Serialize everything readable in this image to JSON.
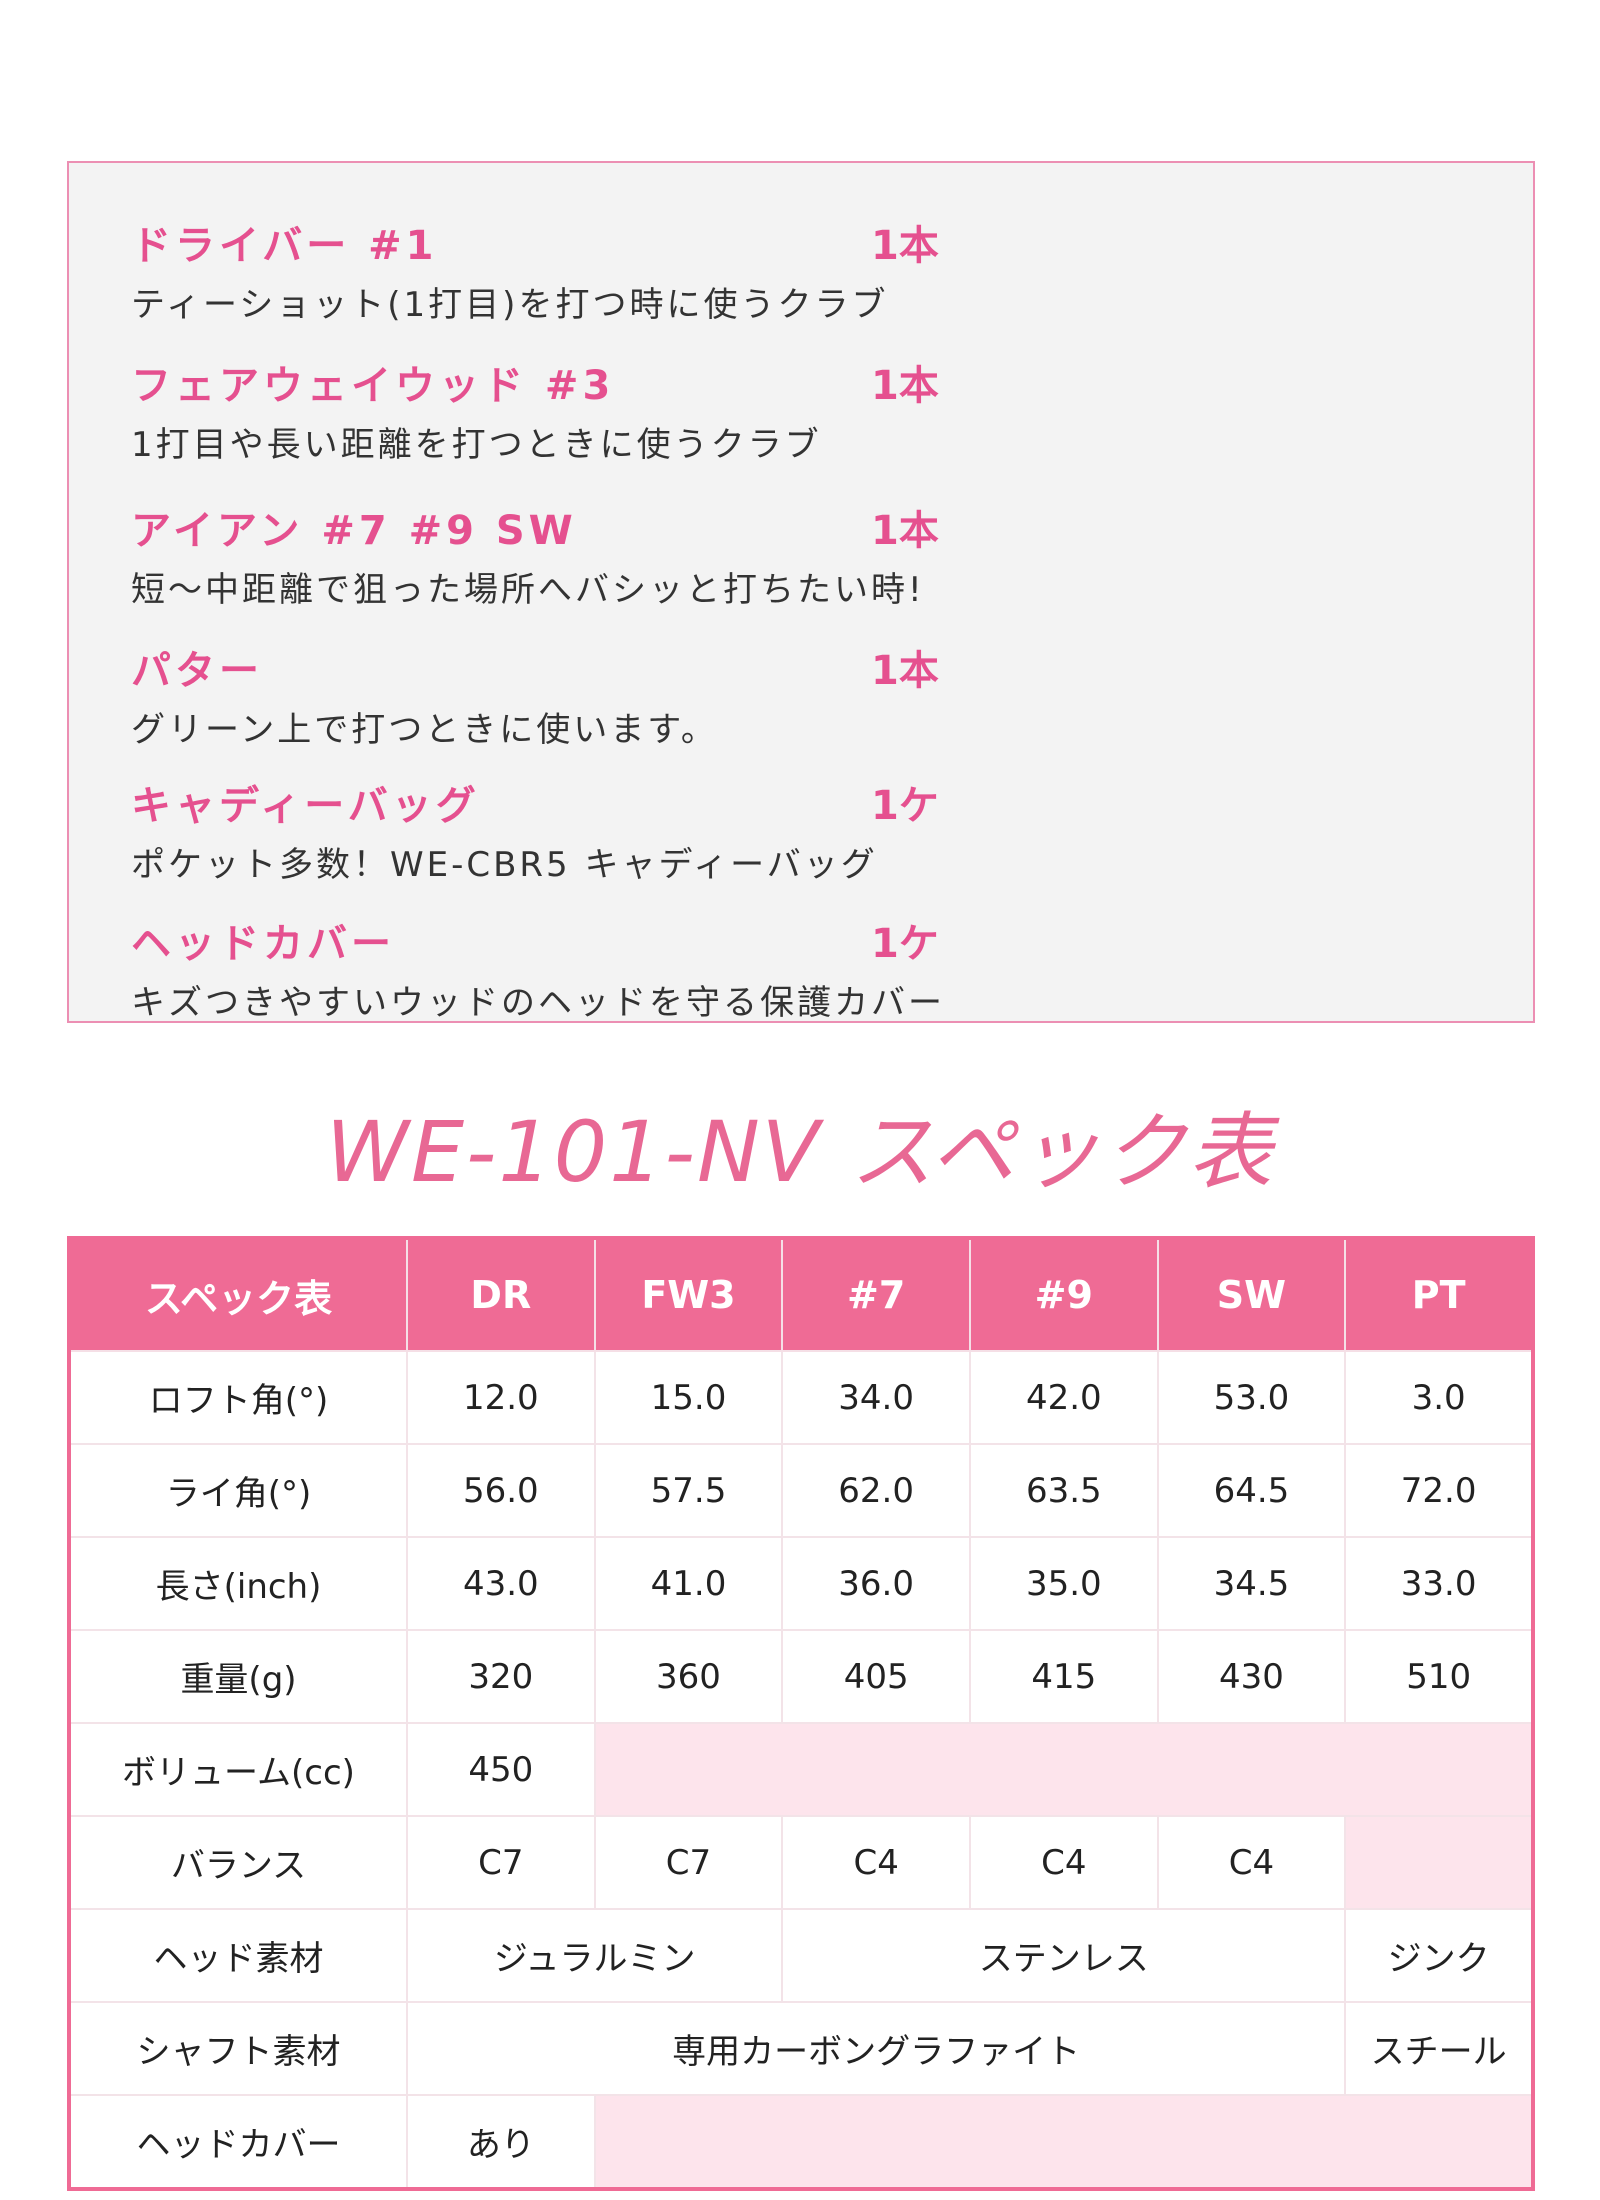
{
  "items": [
    {
      "name": "ドライバー #1",
      "qty": "1本",
      "desc": "ティーショット(1打目)を打つ時に使うクラブ"
    },
    {
      "name": "フェアウェイウッド #3",
      "qty": "1本",
      "desc": "1打目や長い距離を打つときに使うクラブ"
    },
    {
      "name": "アイアン #7 #9 SW",
      "qty": "1本",
      "desc": "短～中距離で狙った場所へバシッと打ちたい時!"
    },
    {
      "name": "パター",
      "qty": "1本",
      "desc": "グリーン上で打つときに使います。"
    },
    {
      "name": "キャディーバッグ",
      "qty": "1ケ",
      "desc": "ポケット多数！WE-CBR5 キャディーバッグ"
    },
    {
      "name": "ヘッドカバー",
      "qty": "1ケ",
      "desc": "キズつきやすいウッドのヘッドを守る保護カバー"
    }
  ],
  "title": "WE-101-NV スペック表",
  "table": {
    "headers": [
      "スペック表",
      "DR",
      "FW3",
      "#7",
      "#9",
      "SW",
      "PT"
    ],
    "rows": {
      "loft": [
        "ロフト角(°)",
        "12.0",
        "15.0",
        "34.0",
        "42.0",
        "53.0",
        "3.0"
      ],
      "lie": [
        "ライ角(°)",
        "56.0",
        "57.5",
        "62.0",
        "63.5",
        "64.5",
        "72.0"
      ],
      "length": [
        "長さ(inch)",
        "43.0",
        "41.0",
        "36.0",
        "35.0",
        "34.5",
        "33.0"
      ],
      "weight": [
        "重量(g)",
        "320",
        "360",
        "405",
        "415",
        "430",
        "510"
      ],
      "volume": [
        "ボリューム(cc)",
        "450"
      ],
      "balance": [
        "バランス",
        "C7",
        "C7",
        "C4",
        "C4",
        "C4"
      ],
      "head": [
        "ヘッド素材",
        "ジュラルミン",
        "ステンレス",
        "ジンク"
      ],
      "shaft": [
        "シャフト素材",
        "専用カーボングラファイト",
        "スチール"
      ],
      "cover": [
        "ヘッドカバー",
        "あり"
      ]
    }
  },
  "colors": {
    "accent": "#ef6b95",
    "empty_cell": "#fde4ec"
  }
}
